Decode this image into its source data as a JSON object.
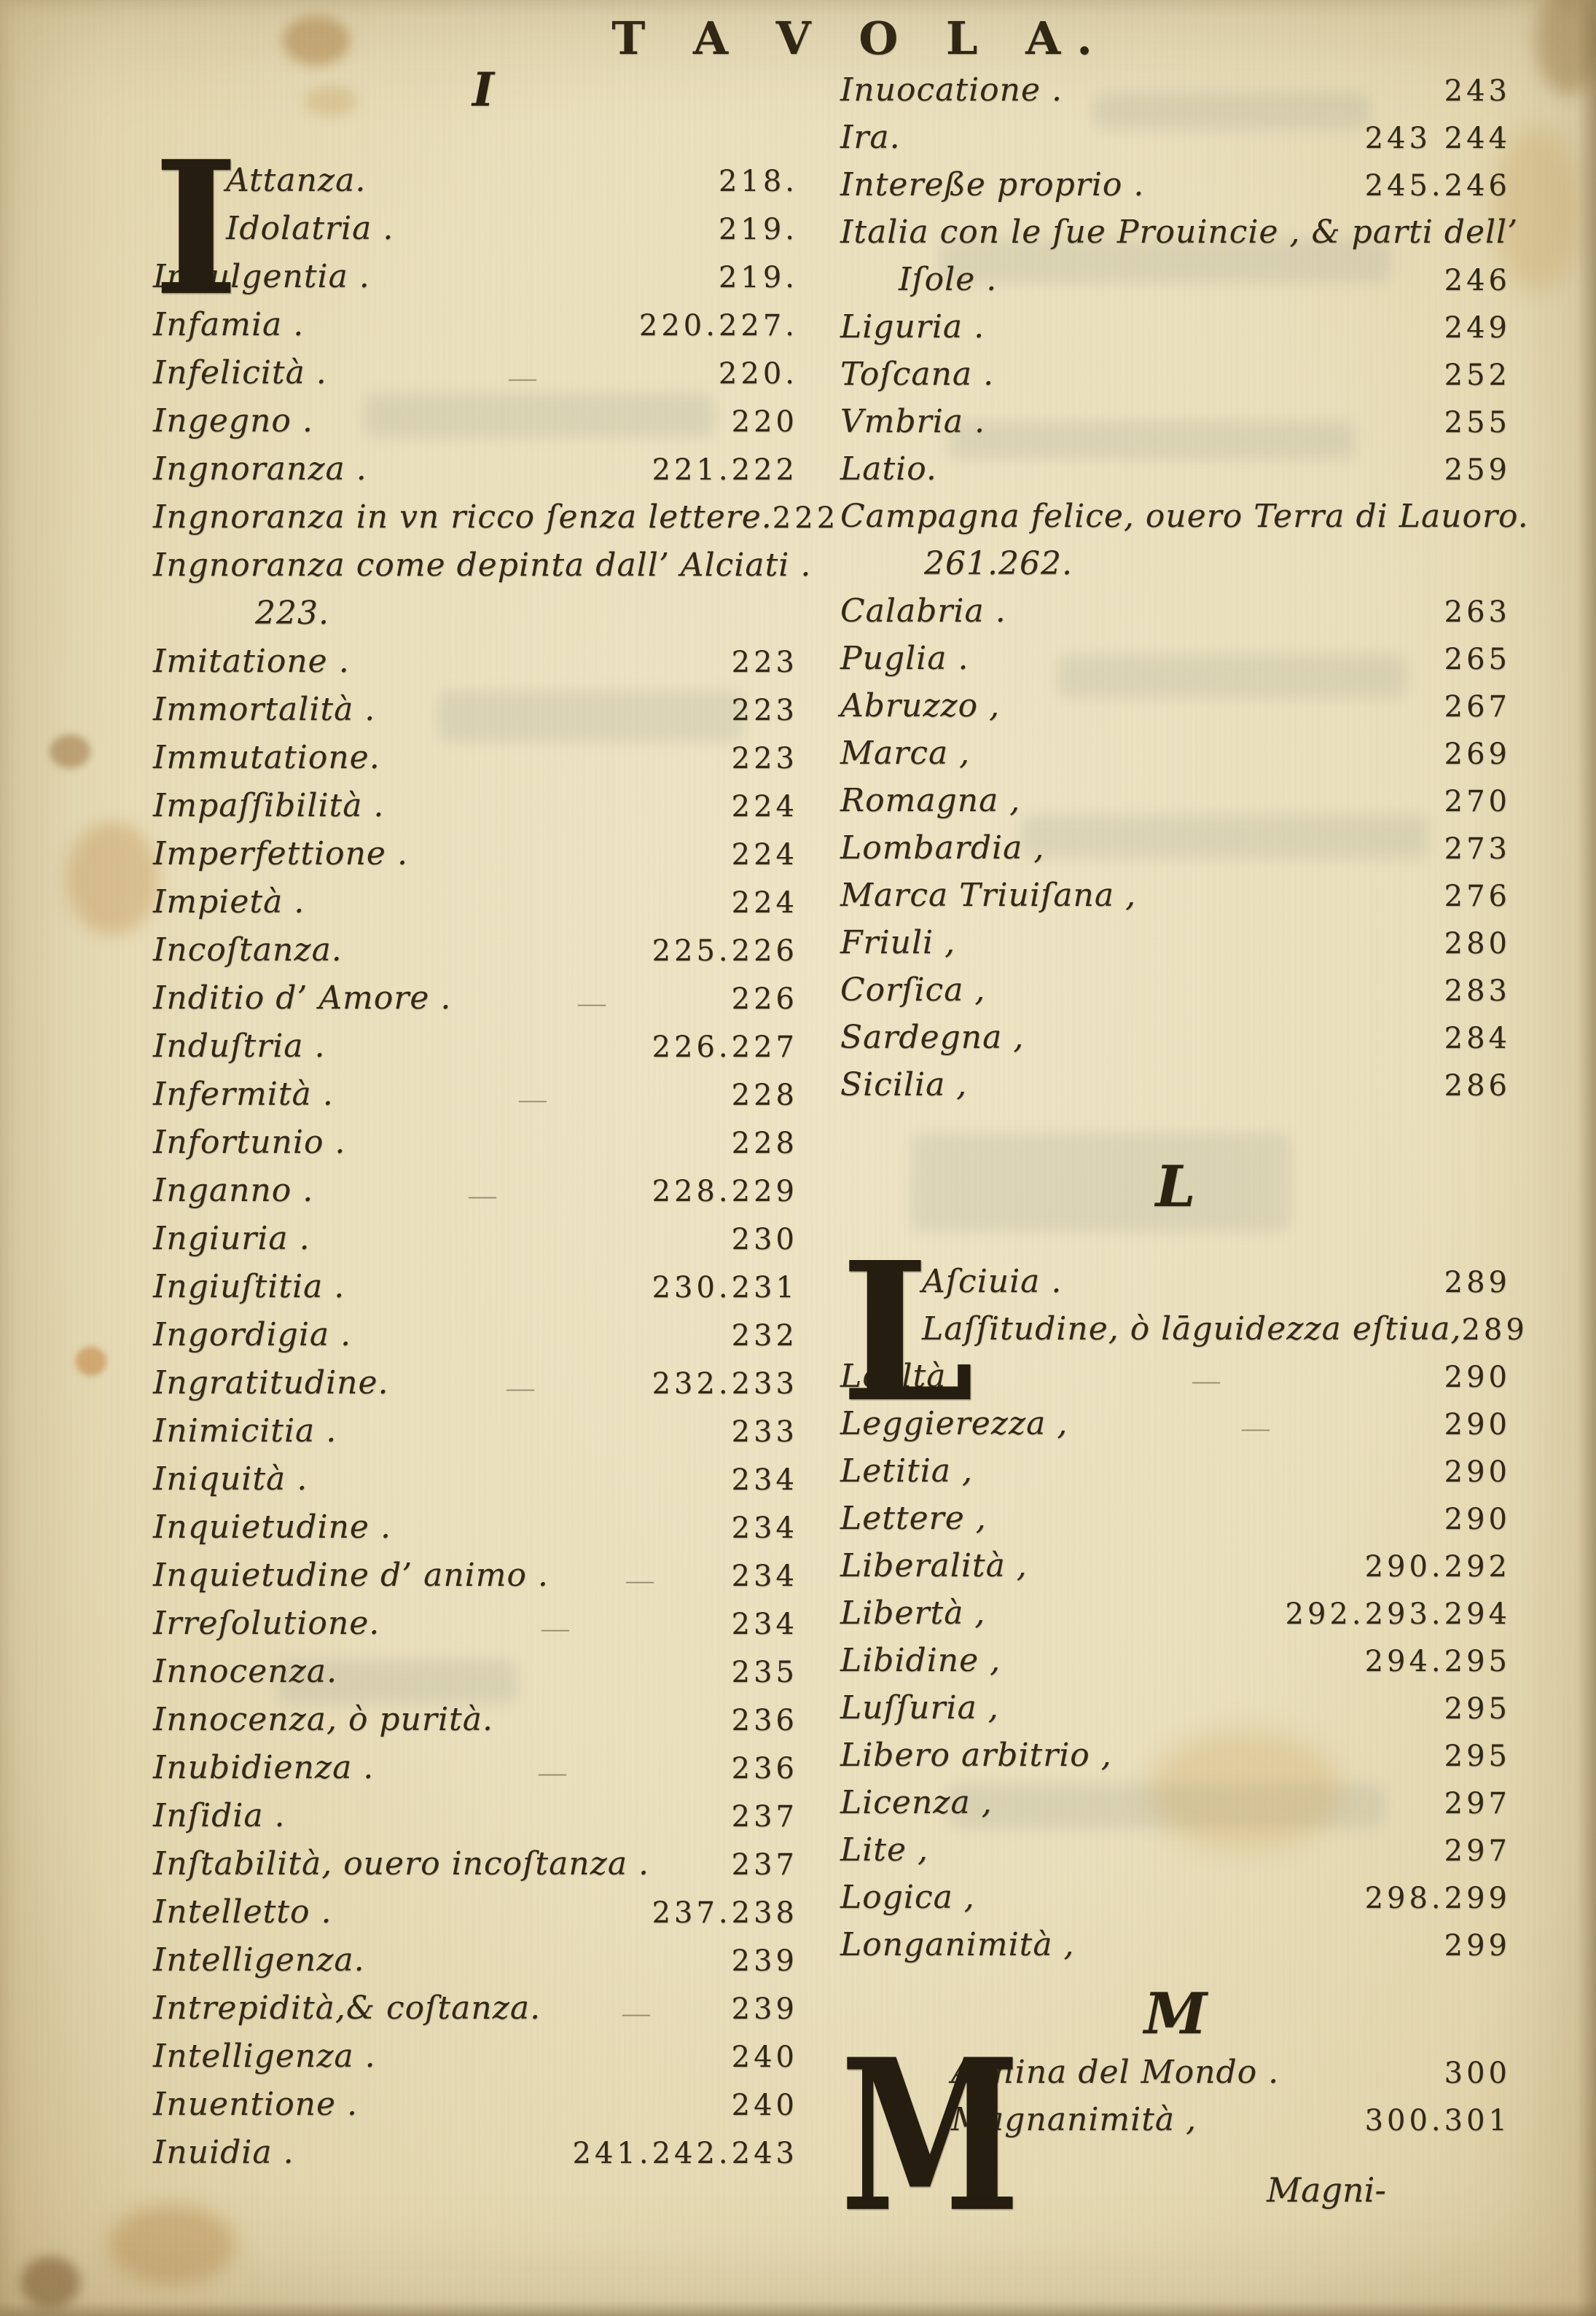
{
  "page": {
    "header": "T A V O L A.",
    "catchword": "Magni-",
    "paper_color": "#eadfbc",
    "ink_color": "#322816"
  },
  "left_column": {
    "section_letter": "I",
    "rows": [
      {
        "type": "dropcap",
        "letter": "I",
        "lines": [
          {
            "name": "Attanza.",
            "num": "218."
          },
          {
            "name": "Idolatria .",
            "num": "219."
          }
        ]
      },
      {
        "type": "entry",
        "name": "Indulgentia .",
        "num": "219."
      },
      {
        "type": "entry",
        "name": "Infamia .",
        "num": "220.227."
      },
      {
        "type": "entry",
        "name": "Infelicità .",
        "num": "220.",
        "mark": true
      },
      {
        "type": "entry",
        "name": "Ingegno .",
        "num": "220"
      },
      {
        "type": "entry",
        "name": "Ingnoranza .",
        "num": "221.222"
      },
      {
        "type": "entry",
        "name": "Ingnoranza in vn ricco ſenza lettere.",
        "num": "222"
      },
      {
        "type": "entry",
        "name": "Ingnoranza come depinta dall’ Alciati ."
      },
      {
        "type": "entry",
        "name": "223.",
        "indent": 140
      },
      {
        "type": "entry",
        "name": "Imitatione .",
        "num": "223"
      },
      {
        "type": "entry",
        "name": "Immortalità .",
        "num": "223"
      },
      {
        "type": "entry",
        "name": "Immutatione.",
        "num": "223"
      },
      {
        "type": "entry",
        "name": "Impaſſibilità .",
        "num": "224"
      },
      {
        "type": "entry",
        "name": "Imperfettione .",
        "num": "224"
      },
      {
        "type": "entry",
        "name": "Impietà .",
        "num": "224"
      },
      {
        "type": "entry",
        "name": "Incoſtanza.",
        "num": "225.226"
      },
      {
        "type": "entry",
        "name": "Inditio d’ Amore .",
        "num": "226",
        "mark": true
      },
      {
        "type": "entry",
        "name": "Induſtria .",
        "num": "226.227"
      },
      {
        "type": "entry",
        "name": "Infermità .",
        "num": "228",
        "mark": true
      },
      {
        "type": "entry",
        "name": "Infortunio .",
        "num": "228"
      },
      {
        "type": "entry",
        "name": "Inganno .",
        "num": "228.229",
        "mark": true
      },
      {
        "type": "entry",
        "name": "Ingiuria .",
        "num": "230"
      },
      {
        "type": "entry",
        "name": "Ingiuſtitia .",
        "num": "230.231"
      },
      {
        "type": "entry",
        "name": "Ingordigia .",
        "num": "232"
      },
      {
        "type": "entry",
        "name": "Ingratitudine.",
        "num": "232.233",
        "mark": true
      },
      {
        "type": "entry",
        "name": "Inimicitia .",
        "num": "233"
      },
      {
        "type": "entry",
        "name": "Iniquità .",
        "num": "234"
      },
      {
        "type": "entry",
        "name": "Inquietudine .",
        "num": "234"
      },
      {
        "type": "entry",
        "name": "Inquietudine d’ animo .",
        "num": "234",
        "mark": true
      },
      {
        "type": "entry",
        "name": "Irreſolutione.",
        "num": "234",
        "mark": true
      },
      {
        "type": "entry",
        "name": "Innocenza.",
        "num": "235"
      },
      {
        "type": "entry",
        "name": "Innocenza, ò purità.",
        "num": "236"
      },
      {
        "type": "entry",
        "name": "Inubidienza .",
        "num": "236",
        "mark": true
      },
      {
        "type": "entry",
        "name": "Inſidia .",
        "num": "237"
      },
      {
        "type": "entry",
        "name": "Inſtabilità, ouero incoſtanza .",
        "num": "237"
      },
      {
        "type": "entry",
        "name": "Intelletto .",
        "num": "237.238"
      },
      {
        "type": "entry",
        "name": "Intelligenza.",
        "num": "239"
      },
      {
        "type": "entry",
        "name": "Intrepidità,& coſtanza.",
        "num": "239",
        "mark": true
      },
      {
        "type": "entry",
        "name": "Intelligenza .",
        "num": "240"
      },
      {
        "type": "entry",
        "name": "Inuentione .",
        "num": "240"
      },
      {
        "type": "entry",
        "name": "Inuidia .",
        "num": "241.242.243"
      }
    ]
  },
  "right_column": {
    "rows": [
      {
        "type": "entry",
        "name": "Inuocatione .",
        "num": "243"
      },
      {
        "type": "entry",
        "name": "Ira.",
        "num": "243 244"
      },
      {
        "type": "entry",
        "name": "Intereße proprio .",
        "num": "245.246"
      },
      {
        "type": "entry",
        "name": "Italia con le ſue Prouincie , & parti dell’"
      },
      {
        "type": "entry",
        "name": "Iſole .",
        "num": "246",
        "indent": 80
      },
      {
        "type": "entry",
        "name": "Liguria .",
        "num": "249"
      },
      {
        "type": "entry",
        "name": "Toſcana .",
        "num": "252"
      },
      {
        "type": "entry",
        "name": "Vmbria .",
        "num": "255"
      },
      {
        "type": "entry",
        "name": "Latio.",
        "num": "259"
      },
      {
        "type": "entry",
        "name": "Campagna felice, ouero Terra di Lauoro."
      },
      {
        "type": "entry",
        "name": "261.262.",
        "indent": 115
      },
      {
        "type": "entry",
        "name": "Calabria .",
        "num": "263"
      },
      {
        "type": "entry",
        "name": "Puglia .",
        "num": "265"
      },
      {
        "type": "entry",
        "name": "Abruzzo ,",
        "num": "267"
      },
      {
        "type": "entry",
        "name": "Marca ,",
        "num": "269"
      },
      {
        "type": "entry",
        "name": "Romagna ,",
        "num": "270"
      },
      {
        "type": "entry",
        "name": "Lombardia ,",
        "num": "273"
      },
      {
        "type": "entry",
        "name": "Marca Triuiſana ,",
        "num": "276"
      },
      {
        "type": "entry",
        "name": "Friuli ,",
        "num": "280"
      },
      {
        "type": "entry",
        "name": "Corſica ,",
        "num": "283"
      },
      {
        "type": "entry",
        "name": "Sardegna ,",
        "num": "284"
      },
      {
        "type": "entry",
        "name": "Sicilia ,",
        "num": "286"
      },
      {
        "type": "spacer",
        "h": 55
      },
      {
        "type": "section",
        "letter": "L",
        "hclass": "sec-h-l"
      },
      {
        "type": "spacer",
        "h": 60
      },
      {
        "type": "dropcap",
        "letter": "L",
        "lines": [
          {
            "name": "Aſciuia .",
            "num": "289"
          },
          {
            "name": "Laſſitudine, ò lāguidezza eſtiua,",
            "num": "289"
          }
        ]
      },
      {
        "type": "entry",
        "name": "Lealtà ,",
        "num": "290",
        "mark": true
      },
      {
        "type": "entry",
        "name": "Leggierezza ,",
        "num": "290",
        "mark": true
      },
      {
        "type": "entry",
        "name": "Letitia ,",
        "num": "290"
      },
      {
        "type": "entry",
        "name": "Lettere ,",
        "num": "290"
      },
      {
        "type": "entry",
        "name": "Liberalità ,",
        "num": "290.292"
      },
      {
        "type": "entry",
        "name": "Libertà ,",
        "num": "292.293.294"
      },
      {
        "type": "entry",
        "name": "Libidine ,",
        "num": "294.295"
      },
      {
        "type": "entry",
        "name": "Luſſuria ,",
        "num": "295"
      },
      {
        "type": "entry",
        "name": "Libero arbitrio ,",
        "num": "295"
      },
      {
        "type": "entry",
        "name": "Licenza ,",
        "num": "297"
      },
      {
        "type": "entry",
        "name": "Lite ,",
        "num": "297"
      },
      {
        "type": "entry",
        "name": "Logica ,",
        "num": "298.299"
      },
      {
        "type": "entry",
        "name": "Longanimità ,",
        "num": "299"
      },
      {
        "type": "section",
        "letter": "M",
        "hclass": "sec-h-m"
      },
      {
        "type": "dropcap",
        "letter": "M",
        "lines": [
          {
            "name": "Achina del Mondo .",
            "num": "300"
          },
          {
            "name": "Magnanimità ,",
            "num": "300.301"
          }
        ]
      }
    ]
  }
}
